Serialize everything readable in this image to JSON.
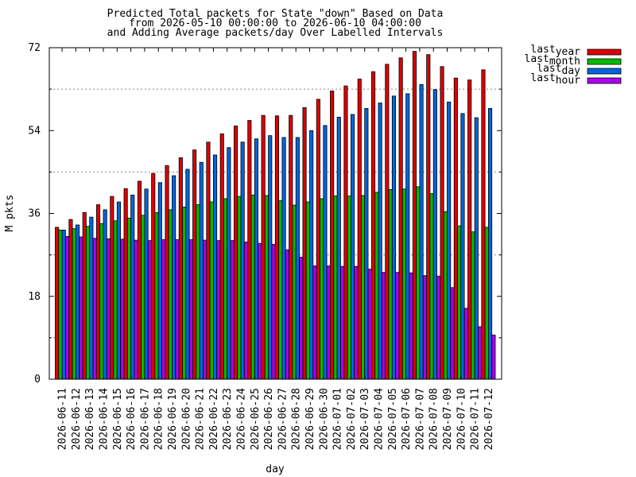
{
  "chart_data": {
    "type": "bar",
    "title_lines": [
      "Predicted Total packets for State \"down\" Based on Data",
      "from 2026-05-10 00:00:00 to 2026-06-10 04:00:00",
      "and Adding Average packets/day Over Labelled Intervals"
    ],
    "xlabel": "day",
    "ylabel": "M pkts",
    "ylim": [
      0,
      72
    ],
    "yticks": [
      0,
      18,
      36,
      54,
      72
    ],
    "grid_y_dotted": [
      9,
      27,
      45,
      63
    ],
    "legend_position": "top-right-outside",
    "categories": [
      "2026-06-11",
      "2026-06-12",
      "2026-06-13",
      "2026-06-14",
      "2026-06-15",
      "2026-06-16",
      "2026-06-17",
      "2026-06-18",
      "2026-06-19",
      "2026-06-20",
      "2026-06-21",
      "2026-06-22",
      "2026-06-23",
      "2026-06-24",
      "2026-06-25",
      "2026-06-26",
      "2026-06-27",
      "2026-06-28",
      "2026-06-29",
      "2026-06-30",
      "2026-07-01",
      "2026-07-02",
      "2026-07-03",
      "2026-07-04",
      "2026-07-05",
      "2026-07-06",
      "2026-07-07",
      "2026-07-08",
      "2026-07-09",
      "2026-07-10",
      "2026-07-11",
      "2026-07-12"
    ],
    "series": [
      {
        "name_main": "last",
        "name_sub": "year",
        "color": "#dd0000",
        "values": [
          33.0,
          34.7,
          36.2,
          37.9,
          39.7,
          41.4,
          43.0,
          44.7,
          46.4,
          48.1,
          49.8,
          51.5,
          53.3,
          55.0,
          56.2,
          57.3,
          57.2,
          57.3,
          59.0,
          60.8,
          62.6,
          63.7,
          65.2,
          66.8,
          68.4,
          69.8,
          71.2,
          70.5,
          67.9,
          65.4,
          65.0,
          67.2
        ]
      },
      {
        "name_main": "last",
        "name_sub": "month",
        "color": "#00bb00",
        "values": [
          32.4,
          32.7,
          33.2,
          33.8,
          34.4,
          35.0,
          35.6,
          36.2,
          36.8,
          37.4,
          37.9,
          38.5,
          39.2,
          39.7,
          40.0,
          39.9,
          38.8,
          37.8,
          38.5,
          39.2,
          39.8,
          39.8,
          39.9,
          40.6,
          41.2,
          41.3,
          41.8,
          40.3,
          36.4,
          33.3,
          32.0,
          33.0
        ]
      },
      {
        "name_main": "last",
        "name_sub": "day",
        "color": "#0066dd",
        "values": [
          32.4,
          33.5,
          35.2,
          36.8,
          38.5,
          40.0,
          41.3,
          42.7,
          44.2,
          45.6,
          47.1,
          48.7,
          50.3,
          51.5,
          52.2,
          52.9,
          52.5,
          52.5,
          54.0,
          55.1,
          56.9,
          57.5,
          58.8,
          60.0,
          61.5,
          62.0,
          64.0,
          62.9,
          60.2,
          57.7,
          56.8,
          58.8
        ]
      },
      {
        "name_main": "last",
        "name_sub": "hour",
        "color": "#aa00ee",
        "values": [
          31.0,
          30.9,
          30.6,
          30.5,
          30.4,
          30.2,
          30.1,
          30.3,
          30.3,
          30.3,
          30.2,
          30.1,
          30.1,
          29.8,
          29.5,
          29.3,
          28.1,
          26.5,
          24.6,
          24.6,
          24.5,
          24.5,
          23.9,
          23.2,
          23.2,
          23.1,
          22.5,
          22.4,
          19.9,
          15.4,
          11.4,
          9.6
        ]
      }
    ]
  }
}
